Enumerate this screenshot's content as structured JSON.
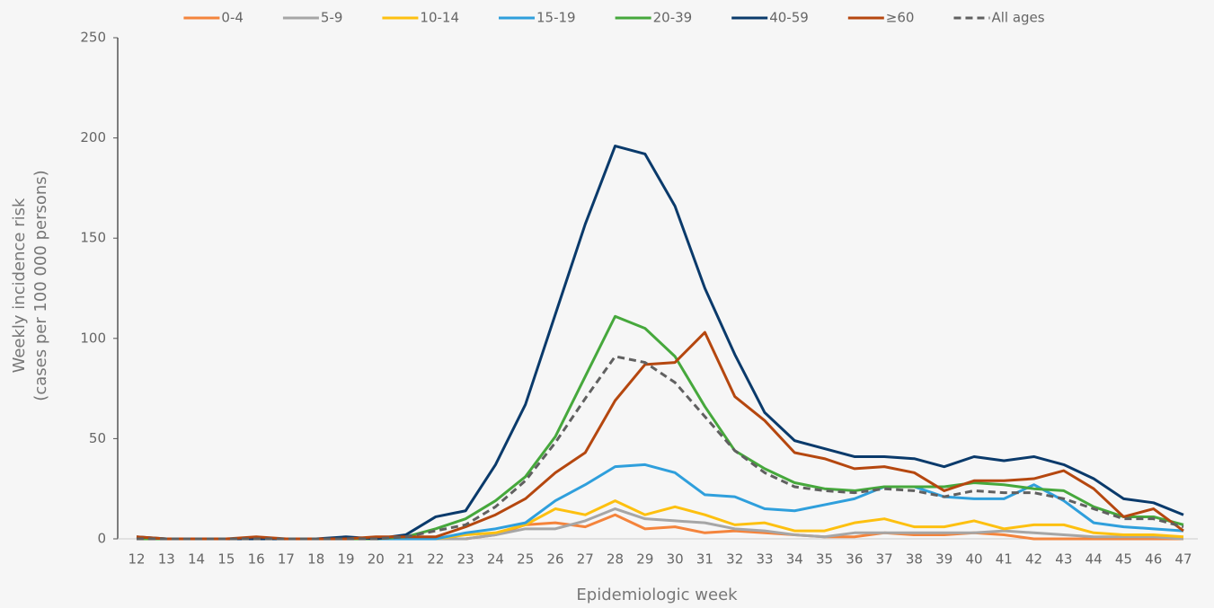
{
  "chart_data": {
    "type": "line",
    "x_label": "Epidemiologic week",
    "y_label": [
      "Weekly incidence risk",
      "(cases per 100 000 persons)"
    ],
    "categories": [
      "12",
      "13",
      "14",
      "15",
      "16",
      "17",
      "18",
      "19",
      "20",
      "21",
      "22",
      "23",
      "24",
      "25",
      "26",
      "27",
      "28",
      "29",
      "30",
      "31",
      "32",
      "33",
      "34",
      "35",
      "36",
      "37",
      "38",
      "39",
      "40",
      "41",
      "42",
      "43",
      "44",
      "45",
      "46",
      "47"
    ],
    "ylim": [
      0,
      250
    ],
    "yticks": [
      0,
      50,
      100,
      150,
      200,
      250
    ],
    "grid": false,
    "legend": "top",
    "series": [
      {
        "name": "0-4",
        "color": "#f4843c",
        "values": [
          0,
          0,
          0,
          0,
          0,
          0,
          0,
          0,
          0,
          0,
          0,
          0,
          2,
          7,
          8,
          6,
          12,
          5,
          6,
          3,
          4,
          3,
          2,
          1,
          1,
          3,
          2,
          2,
          3,
          2,
          0,
          0,
          0,
          0,
          0,
          0
        ]
      },
      {
        "name": "5-9",
        "color": "#a6a6a6",
        "values": [
          0,
          0,
          0,
          0,
          0,
          0,
          0,
          0,
          0,
          0,
          0,
          0,
          2,
          5,
          5,
          9,
          15,
          10,
          9,
          8,
          5,
          4,
          2,
          1,
          3,
          3,
          3,
          3,
          3,
          4,
          3,
          2,
          1,
          1,
          1,
          0
        ]
      },
      {
        "name": "10-14",
        "color": "#fdc010",
        "values": [
          0,
          0,
          0,
          0,
          0,
          0,
          0,
          0,
          0,
          0,
          0,
          2,
          3,
          7,
          15,
          12,
          19,
          12,
          16,
          12,
          7,
          8,
          4,
          4,
          8,
          10,
          6,
          6,
          9,
          5,
          7,
          7,
          3,
          2,
          2,
          1
        ]
      },
      {
        "name": "15-19",
        "color": "#2f9fdc",
        "values": [
          0,
          0,
          0,
          0,
          0,
          0,
          0,
          0,
          0,
          0,
          0,
          3,
          5,
          8,
          19,
          27,
          36,
          37,
          33,
          22,
          21,
          15,
          14,
          17,
          20,
          26,
          26,
          21,
          20,
          20,
          27,
          19,
          8,
          6,
          5,
          4
        ]
      },
      {
        "name": "20-39",
        "color": "#46a83c",
        "values": [
          0,
          0,
          0,
          0,
          0,
          0,
          0,
          0,
          0,
          1,
          5,
          10,
          19,
          31,
          51,
          81,
          111,
          105,
          91,
          66,
          44,
          35,
          28,
          25,
          24,
          26,
          26,
          26,
          28,
          27,
          25,
          24,
          16,
          11,
          11,
          7
        ]
      },
      {
        "name": "40-59",
        "color": "#0a3a6b",
        "values": [
          1,
          0,
          0,
          0,
          0,
          0,
          0,
          1,
          0,
          2,
          11,
          14,
          37,
          67,
          112,
          157,
          196,
          192,
          166,
          125,
          92,
          63,
          49,
          45,
          41,
          41,
          40,
          36,
          41,
          39,
          41,
          37,
          30,
          20,
          18,
          12
        ]
      },
      {
        "name": "≥60",
        "color": "#b5470f",
        "values": [
          1,
          0,
          0,
          0,
          1,
          0,
          0,
          0,
          1,
          1,
          1,
          6,
          12,
          20,
          33,
          43,
          69,
          87,
          88,
          103,
          71,
          59,
          43,
          40,
          35,
          36,
          33,
          24,
          29,
          29,
          30,
          34,
          25,
          11,
          15,
          4
        ]
      },
      {
        "name": "All ages",
        "color": "#606060",
        "dashed": true,
        "values": [
          0,
          0,
          0,
          0,
          0,
          0,
          0,
          0,
          0,
          1,
          4,
          7,
          16,
          29,
          48,
          70,
          91,
          88,
          78,
          61,
          44,
          33,
          26,
          24,
          23,
          25,
          24,
          21,
          24,
          23,
          23,
          20,
          15,
          10,
          10,
          6
        ]
      }
    ]
  }
}
